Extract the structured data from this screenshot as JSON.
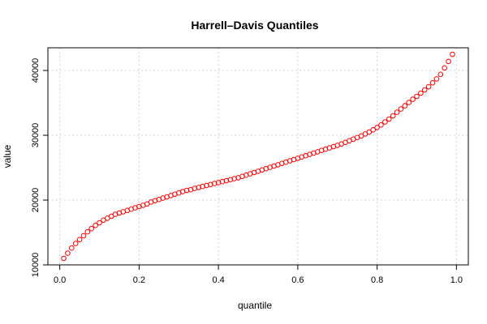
{
  "chart_data": {
    "type": "scatter",
    "title": "Harrell–Davis Quantiles",
    "xlabel": "quantile",
    "ylabel": "value",
    "xlim": [
      -0.03,
      1.03
    ],
    "ylim": [
      10000,
      43500
    ],
    "x_ticks": [
      0,
      0.2,
      0.4,
      0.6,
      0.8,
      1
    ],
    "x_tick_labels": [
      "0.0",
      "0.2",
      "0.4",
      "0.6",
      "0.8",
      "1.0"
    ],
    "y_ticks": [
      10000,
      20000,
      30000,
      40000
    ],
    "y_tick_labels": [
      "10000",
      "20000",
      "30000",
      "40000"
    ],
    "grid": true,
    "marker_color": "#ff0000",
    "marker": "open-circle",
    "series": [
      {
        "x": [
          0.01,
          0.02,
          0.03,
          0.04,
          0.05,
          0.06,
          0.07,
          0.08,
          0.09,
          0.1,
          0.11,
          0.12,
          0.13,
          0.14,
          0.15,
          0.16,
          0.17,
          0.18,
          0.19,
          0.2,
          0.21,
          0.22,
          0.23,
          0.24,
          0.25,
          0.26,
          0.27,
          0.28,
          0.29,
          0.3,
          0.31,
          0.32,
          0.33,
          0.34,
          0.35,
          0.36,
          0.37,
          0.38,
          0.39,
          0.4,
          0.41,
          0.42,
          0.43,
          0.44,
          0.45,
          0.46,
          0.47,
          0.48,
          0.49,
          0.5,
          0.51,
          0.52,
          0.53,
          0.54,
          0.55,
          0.56,
          0.57,
          0.58,
          0.59,
          0.6,
          0.61,
          0.62,
          0.63,
          0.64,
          0.65,
          0.66,
          0.67,
          0.68,
          0.69,
          0.7,
          0.71,
          0.72,
          0.73,
          0.74,
          0.75,
          0.76,
          0.77,
          0.78,
          0.79,
          0.8,
          0.81,
          0.82,
          0.83,
          0.84,
          0.85,
          0.86,
          0.87,
          0.88,
          0.89,
          0.9,
          0.91,
          0.92,
          0.93,
          0.94,
          0.95,
          0.96,
          0.97,
          0.98,
          0.99
        ],
        "y": [
          11000,
          11800,
          12600,
          13300,
          13900,
          14500,
          15100,
          15600,
          16100,
          16500,
          16900,
          17200,
          17500,
          17800,
          18000,
          18200,
          18400,
          18600,
          18800,
          19000,
          19200,
          19400,
          19700,
          19900,
          20100,
          20300,
          20500,
          20700,
          20900,
          21100,
          21300,
          21500,
          21600,
          21800,
          21950,
          22100,
          22250,
          22400,
          22550,
          22700,
          22850,
          23000,
          23150,
          23300,
          23450,
          23650,
          23850,
          24050,
          24250,
          24450,
          24650,
          24850,
          25050,
          25250,
          25450,
          25650,
          25850,
          26050,
          26250,
          26450,
          26650,
          26850,
          27050,
          27250,
          27450,
          27650,
          27850,
          28050,
          28250,
          28450,
          28650,
          28900,
          29150,
          29400,
          29650,
          29900,
          30200,
          30500,
          30850,
          31200,
          31600,
          32050,
          32500,
          33000,
          33550,
          34050,
          34550,
          35050,
          35550,
          36000,
          36500,
          37000,
          37500,
          38100,
          38700,
          39400,
          40400,
          41400,
          42500
        ]
      }
    ]
  }
}
